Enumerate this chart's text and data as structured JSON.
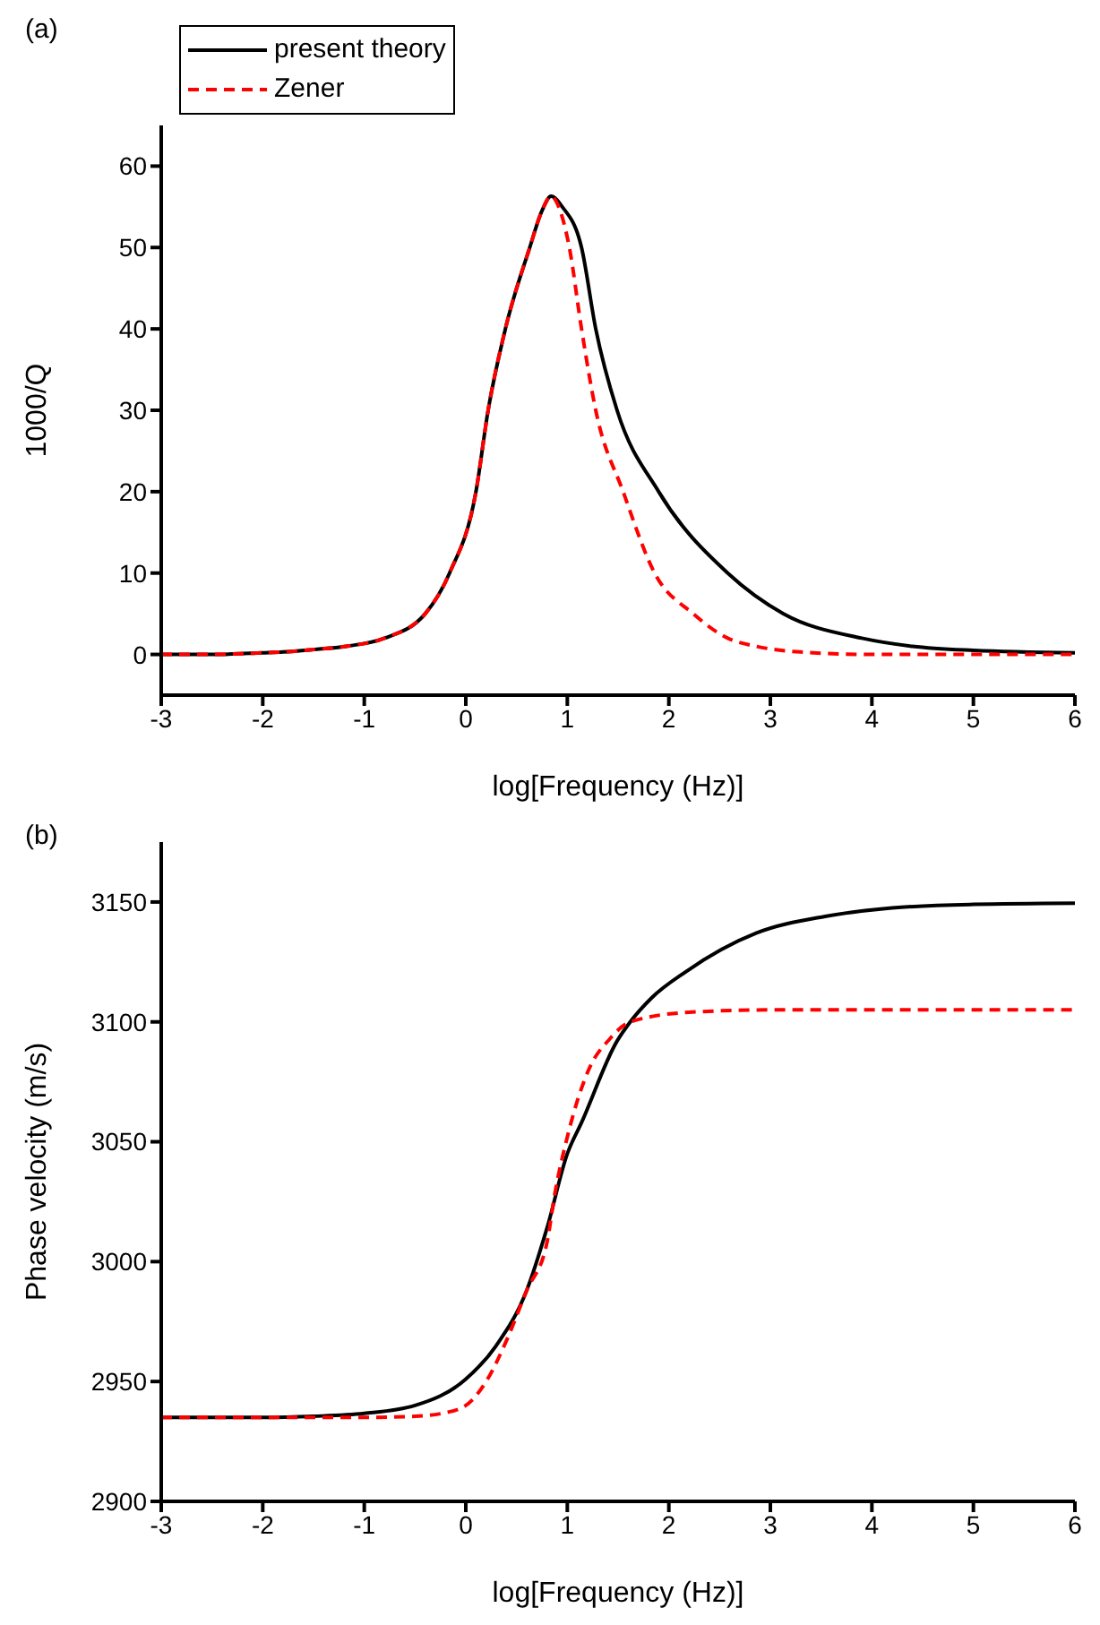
{
  "chart_data": [
    {
      "type": "line",
      "annotations": [
        "(a)"
      ],
      "xlabel": "log[Frequency (Hz)]",
      "ylabel": "1000/Q",
      "xlim": [
        -3,
        6
      ],
      "xticks": [
        -3,
        -2,
        -1,
        0,
        1,
        2,
        3,
        4,
        5,
        6
      ],
      "ylim": [
        -5,
        65
      ],
      "yticks": [
        0,
        10,
        20,
        30,
        40,
        50,
        60
      ],
      "legend": "top left",
      "series": [
        {
          "name": "present theory",
          "color": "#000000",
          "line_style": "solid",
          "x": [
            -3,
            -2.5,
            -2,
            -1.8,
            -1.5,
            -1.18,
            -0.8,
            -0.4,
            -0.16,
            0.1,
            0.22,
            0.39,
            0.63,
            0.75,
            0.84,
            0.95,
            1.14,
            1.28,
            1.49,
            1.9,
            2.58,
            3.13,
            3.9,
            4.4,
            5,
            6
          ],
          "values": [
            0,
            0,
            0.2,
            0.3,
            0.6,
            1,
            2,
            5,
            10,
            20,
            30,
            40,
            50,
            54.5,
            56.3,
            55,
            50,
            40,
            30,
            20,
            10,
            5,
            2,
            1,
            0.5,
            0.2
          ]
        },
        {
          "name": "Zener",
          "color": "#ff0000",
          "line_style": "dashed",
          "x": [
            -3,
            -2.5,
            -2,
            -1.8,
            -1.5,
            -1.18,
            -0.8,
            -0.4,
            -0.16,
            0.1,
            0.22,
            0.39,
            0.63,
            0.75,
            0.84,
            0.93,
            1.02,
            1.14,
            1.28,
            1.55,
            1.86,
            2.24,
            2.58,
            2.86,
            3.3,
            4,
            4.5,
            6
          ],
          "values": [
            0,
            0,
            0.2,
            0.3,
            0.6,
            1,
            2,
            5,
            10,
            20,
            30,
            40,
            50,
            54.5,
            56.3,
            54.5,
            50,
            40,
            30,
            20,
            10,
            5,
            2,
            1,
            0.3,
            0,
            0,
            0
          ]
        }
      ]
    },
    {
      "type": "line",
      "annotations": [
        "(b)"
      ],
      "xlabel": "log[Frequency (Hz)]",
      "ylabel": "Phase velocity (m/s)",
      "xlim": [
        -3,
        6
      ],
      "xticks": [
        -3,
        -2,
        -1,
        0,
        1,
        2,
        3,
        4,
        5,
        6
      ],
      "ylim": [
        2900,
        3175
      ],
      "yticks": [
        2900,
        2950,
        3000,
        3050,
        3100,
        3150
      ],
      "series": [
        {
          "color": "#000000",
          "line_style": "solid",
          "x": [
            -3,
            -2,
            -1.5,
            -1,
            -0.5,
            0,
            0.3,
            0.6,
            0.8,
            1,
            1.14,
            1.49,
            1.62,
            1.83,
            2.17,
            2.86,
            3.54,
            4.2,
            5,
            6
          ],
          "values": [
            2935,
            2935,
            2935.5,
            2936.7,
            2940,
            2951,
            2965,
            2988,
            3014,
            3045,
            3058,
            3092,
            3100,
            3110,
            3121,
            3137,
            3144,
            3147.5,
            3149,
            3149.5
          ]
        },
        {
          "color": "#ff0000",
          "line_style": "dashed",
          "x": [
            -3,
            -1,
            -0.5,
            -0.2,
            0,
            0.2,
            0.4,
            0.6,
            0.8,
            0.88,
            1,
            1.21,
            1.42,
            1.62,
            2.2,
            3,
            6
          ],
          "values": [
            2935,
            2935,
            2935.5,
            2937,
            2940,
            2950,
            2967,
            2988,
            3008,
            3029,
            3052,
            3080,
            3093,
            3100,
            3104,
            3105,
            3105
          ]
        }
      ]
    }
  ]
}
